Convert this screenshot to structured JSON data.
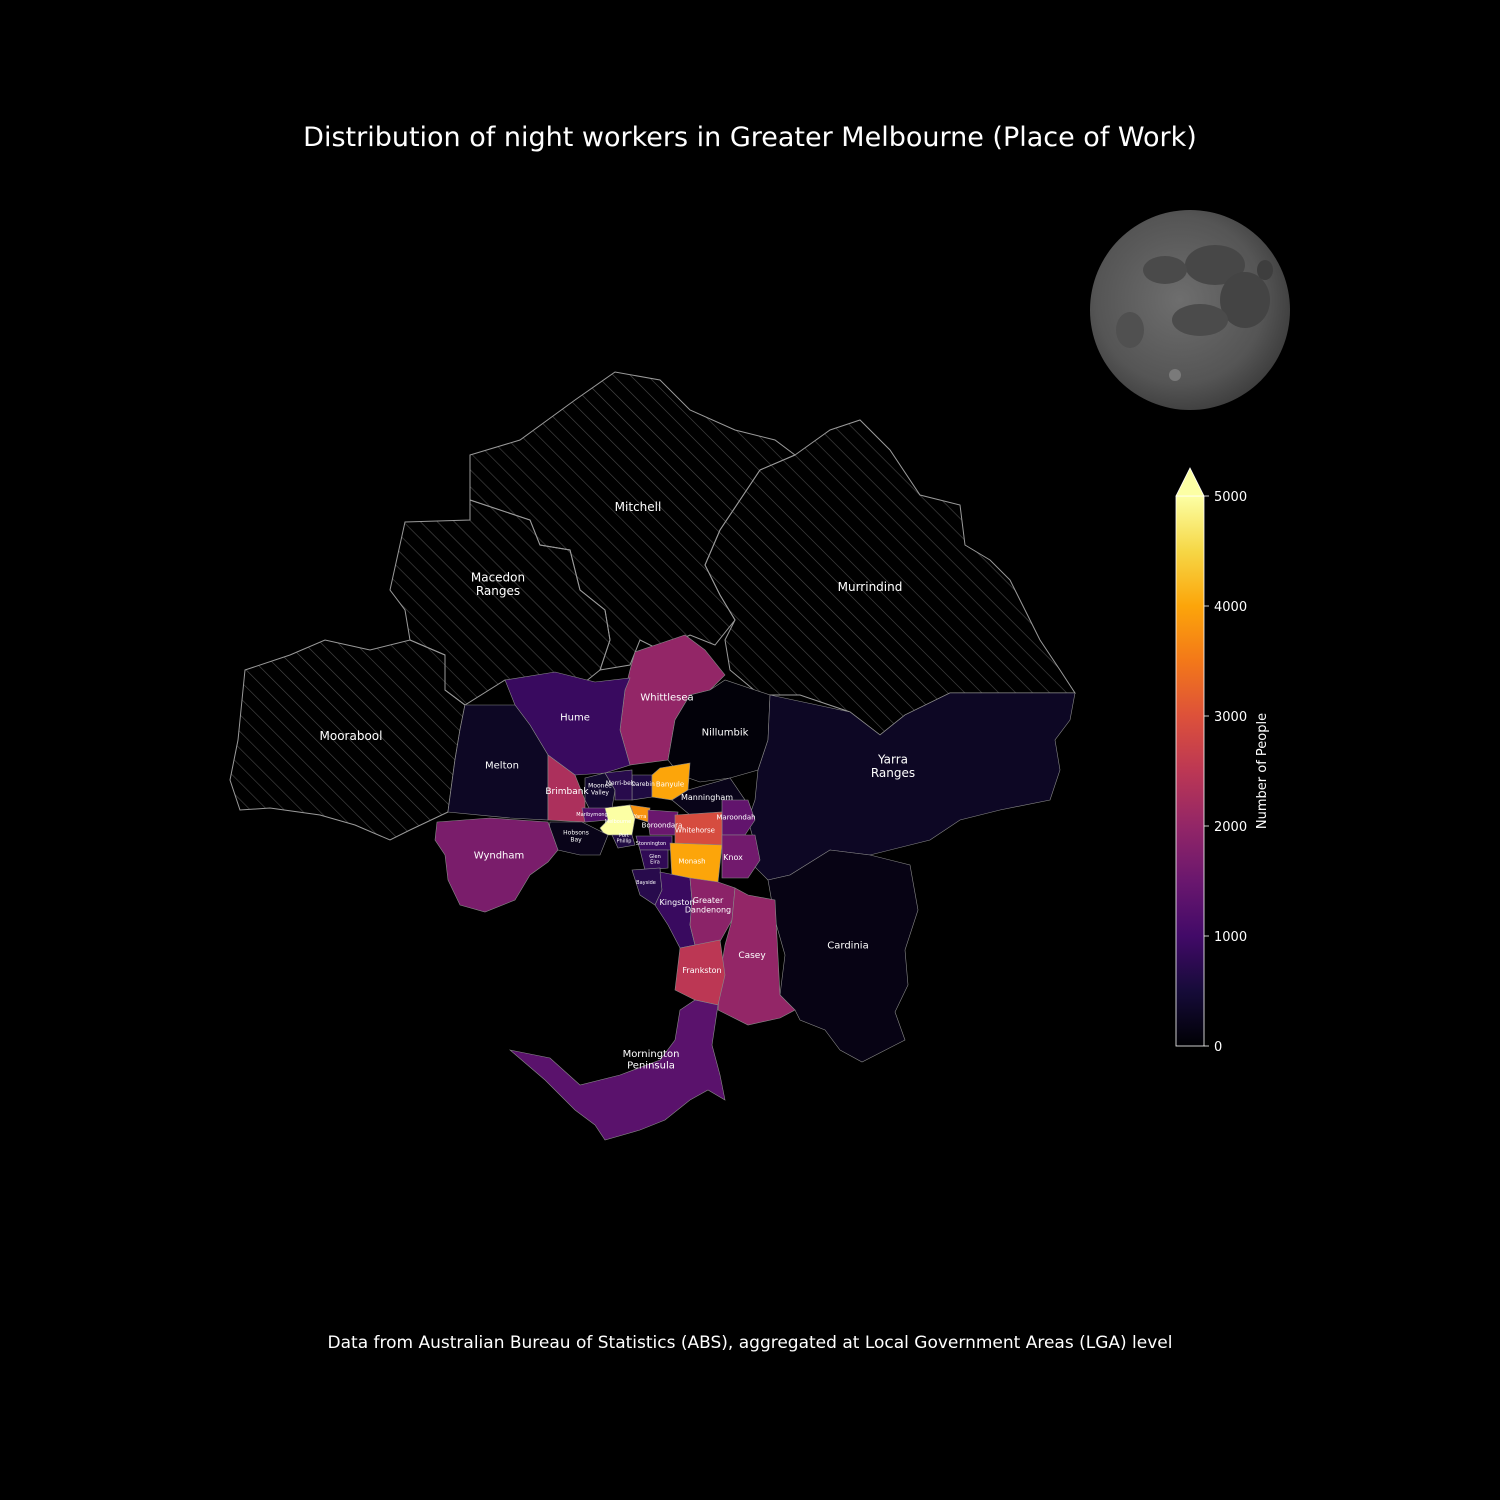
{
  "title": "Distribution of night workers in Greater Melbourne (Place of Work)",
  "footer": "Data from Australian Bureau of Statistics (ABS), aggregated at Local Government Areas (LGA) level",
  "colorbar": {
    "label": "Number of People",
    "ticks": [
      "0",
      "1000",
      "2000",
      "3000",
      "4000",
      "5000"
    ],
    "min": 0,
    "max": 5000,
    "extend": "max",
    "colormap": "inferno"
  },
  "no_data_style": "hatched",
  "lgas": [
    {
      "name": "Mitchell",
      "label": "Mitchell",
      "value": null
    },
    {
      "name": "Macedon Ranges",
      "label": "Macedon\nRanges",
      "value": null
    },
    {
      "name": "Murrindind",
      "label": "Murrindind",
      "value": null
    },
    {
      "name": "Moorabool",
      "label": "Moorabool",
      "value": null
    },
    {
      "name": "Whittlesea",
      "label": "Whittlesea",
      "value": 2000
    },
    {
      "name": "Hume",
      "label": "Hume",
      "value": 900
    },
    {
      "name": "Nillumbik",
      "label": "Nillumbik",
      "value": 50
    },
    {
      "name": "Melton",
      "label": "Melton",
      "value": 300
    },
    {
      "name": "Yarra Ranges",
      "label": "Yarra\nRanges",
      "value": 300
    },
    {
      "name": "Brimbank",
      "label": "Brimbank",
      "value": 2300
    },
    {
      "name": "Moonee Valley",
      "label": "Moonee\nValley",
      "value": 400
    },
    {
      "name": "Darebin",
      "label": "Darebin",
      "value": 600
    },
    {
      "name": "Banyule",
      "label": "Banyule",
      "value": 4000
    },
    {
      "name": "Merri-bek",
      "label": "Merri-bek",
      "value": 700
    },
    {
      "name": "Manningham",
      "label": "Manningham",
      "value": 200
    },
    {
      "name": "Maribyrnong",
      "label": "Maribyrnong",
      "value": 1200
    },
    {
      "name": "Melbourne",
      "label": "Melbourne",
      "value": 5000
    },
    {
      "name": "Yarra",
      "label": "Yarra",
      "value": 3800
    },
    {
      "name": "Maroondah",
      "label": "Maroondah",
      "value": 1400
    },
    {
      "name": "Boroondara",
      "label": "Boroondara",
      "value": 1500
    },
    {
      "name": "Whitehorse",
      "label": "Whitehorse",
      "value": 2900
    },
    {
      "name": "Hobsons Bay",
      "label": "Hobsons\nBay",
      "value": 200
    },
    {
      "name": "Port Phillip",
      "label": "Port\nPhillip",
      "value": 600
    },
    {
      "name": "Stonnington",
      "label": "Stonnington",
      "value": 900
    },
    {
      "name": "Wyndham",
      "label": "Wyndham",
      "value": 1700
    },
    {
      "name": "Glen Eira",
      "label": "Glen\nEira",
      "value": 800
    },
    {
      "name": "Monash",
      "label": "Monash",
      "value": 4000
    },
    {
      "name": "Knox",
      "label": "Knox",
      "value": 1600
    },
    {
      "name": "Bayside",
      "label": "Bayside",
      "value": 700
    },
    {
      "name": "Kingston",
      "label": "Kingston",
      "value": 900
    },
    {
      "name": "Greater Dandenong",
      "label": "Greater\nDandenong",
      "value": 1900
    },
    {
      "name": "Cardinia",
      "label": "Cardinia",
      "value": 150
    },
    {
      "name": "Casey",
      "label": "Casey",
      "value": 2000
    },
    {
      "name": "Frankston",
      "label": "Frankston",
      "value": 2500
    },
    {
      "name": "Mornington Peninsula",
      "label": "Mornington\nPeninsula",
      "value": 1300
    }
  ]
}
